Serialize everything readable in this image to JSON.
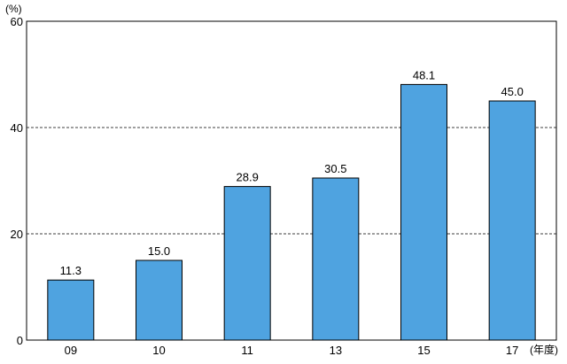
{
  "chart_data": {
    "type": "bar",
    "title": "",
    "xlabel": "",
    "ylabel": "",
    "y_unit": "(%)",
    "x_unit": "(年度)",
    "categories": [
      "09",
      "10",
      "11",
      "13",
      "15",
      "17"
    ],
    "values": [
      11.3,
      15.0,
      28.9,
      30.5,
      48.1,
      45.0
    ],
    "data_labels": [
      "11.3",
      "15.0",
      "28.9",
      "30.5",
      "48.1",
      "45.0"
    ],
    "ylim": [
      0,
      60
    ],
    "y_ticks": [
      0,
      20,
      40,
      60
    ],
    "grid": "dashed horizontal at 20 and 40",
    "legend": "none",
    "bar_color": "#4fa3e0"
  }
}
